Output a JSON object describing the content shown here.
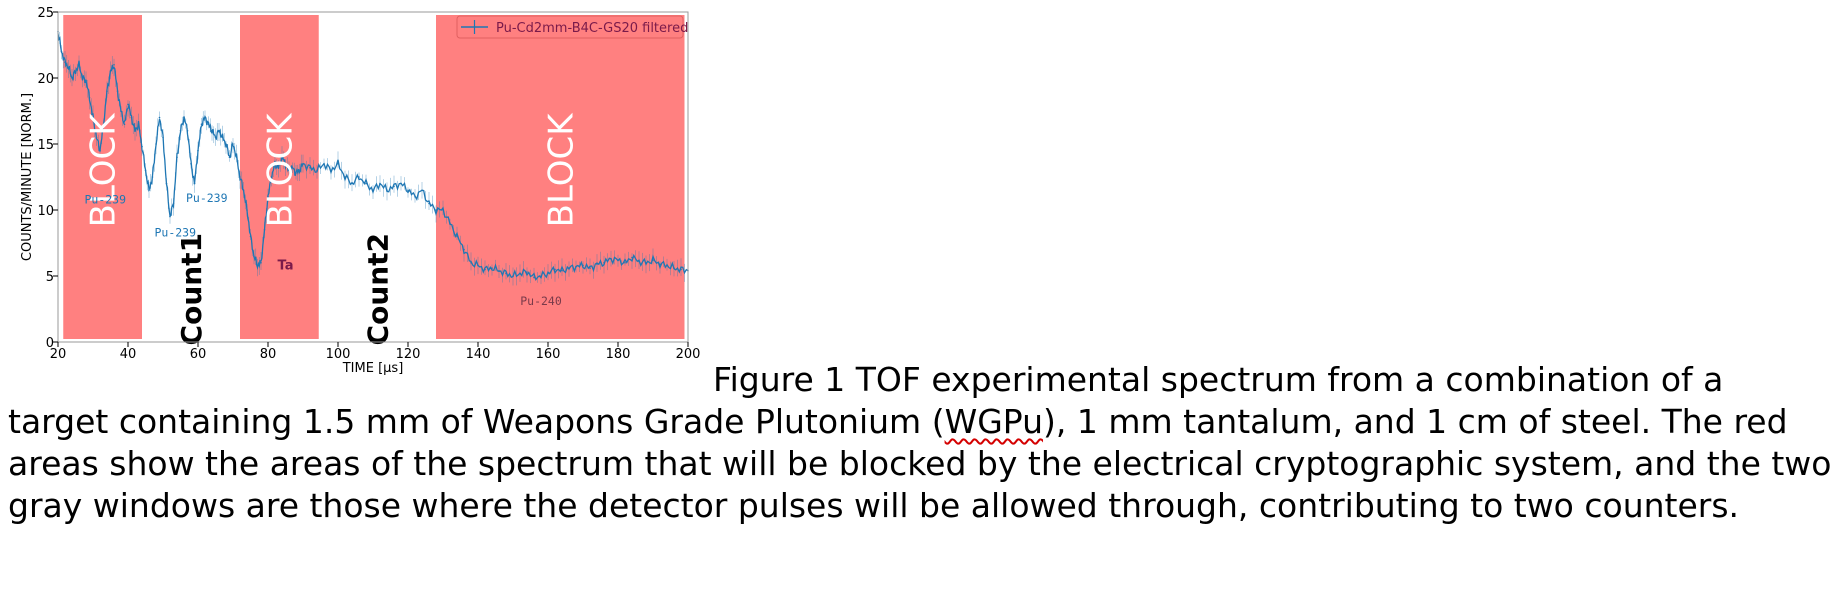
{
  "chart_data": {
    "type": "line",
    "xlabel": "TIME [μs]",
    "ylabel": "COUNTS/MINUTE [NORM.]",
    "xlim": [
      20,
      200
    ],
    "ylim": [
      0,
      25
    ],
    "xticks": [
      20,
      40,
      60,
      80,
      100,
      120,
      140,
      160,
      180,
      200
    ],
    "yticks": [
      0,
      5,
      10,
      15,
      20,
      25
    ],
    "legend": {
      "label": "Pu-Cd2mm-B4C-GS20 filtered",
      "placement": "top-right"
    },
    "grid": false,
    "line_color": "#1f77b4",
    "series": [
      {
        "name": "Pu-Cd2mm-B4C-GS20 filtered",
        "x": [
          20,
          21,
          22,
          23,
          24,
          25,
          26,
          27,
          28,
          29,
          30,
          31,
          32,
          33,
          34,
          35,
          36,
          37,
          38,
          39,
          40,
          41,
          42,
          43,
          44,
          45,
          46,
          47,
          48,
          49,
          50,
          51,
          52,
          53,
          54,
          55,
          56,
          57,
          58,
          59,
          60,
          61,
          62,
          63,
          64,
          65,
          66,
          67,
          68,
          69,
          70,
          71,
          72,
          73,
          74,
          75,
          76,
          77,
          78,
          79,
          80,
          81,
          82,
          83,
          84,
          85,
          86,
          87,
          88,
          89,
          90,
          92,
          94,
          96,
          98,
          100,
          102,
          104,
          106,
          108,
          110,
          112,
          114,
          116,
          118,
          120,
          122,
          124,
          126,
          128,
          130,
          132,
          134,
          136,
          138,
          140,
          142,
          144,
          146,
          148,
          150,
          152,
          154,
          156,
          158,
          160,
          162,
          164,
          166,
          168,
          170,
          172,
          174,
          176,
          178,
          180,
          182,
          184,
          186,
          188,
          190,
          192,
          194,
          196,
          198,
          200
        ],
        "y": [
          23.5,
          22.0,
          21.2,
          20.8,
          20.0,
          20.5,
          21.0,
          20.0,
          19.8,
          18.5,
          17.0,
          15.5,
          14.5,
          16.5,
          19.0,
          20.5,
          21.0,
          19.0,
          17.5,
          16.5,
          18.0,
          17.0,
          16.0,
          16.5,
          14.8,
          13.0,
          11.5,
          12.5,
          15.0,
          17.0,
          15.5,
          12.0,
          9.5,
          10.5,
          14.0,
          16.0,
          17.0,
          16.0,
          13.5,
          12.0,
          14.5,
          16.5,
          17.0,
          16.5,
          16.0,
          15.5,
          16.0,
          15.5,
          15.0,
          14.0,
          15.0,
          14.0,
          12.5,
          11.5,
          10.0,
          8.0,
          6.5,
          5.8,
          6.0,
          8.5,
          11.0,
          12.5,
          13.5,
          13.2,
          14.0,
          13.5,
          13.0,
          13.2,
          12.8,
          13.0,
          13.5,
          13.2,
          13.0,
          13.5,
          13.0,
          13.5,
          12.5,
          12.0,
          12.5,
          12.0,
          11.5,
          12.0,
          11.5,
          11.8,
          12.0,
          11.5,
          11.0,
          11.5,
          10.5,
          10.0,
          10.0,
          9.0,
          8.0,
          7.0,
          6.0,
          5.8,
          5.5,
          5.6,
          5.4,
          5.2,
          5.0,
          5.2,
          5.3,
          4.9,
          5.0,
          5.2,
          5.5,
          5.4,
          5.6,
          5.7,
          5.8,
          5.6,
          5.9,
          6.0,
          6.3,
          6.2,
          6.0,
          6.4,
          6.1,
          6.0,
          6.2,
          5.9,
          5.8,
          5.6,
          5.5,
          5.4
        ]
      }
    ],
    "regions": [
      {
        "kind": "blocked",
        "x_range": [
          21.5,
          44
        ],
        "label": "BLOCK"
      },
      {
        "kind": "open",
        "x_range": [
          44,
          72
        ],
        "label": "Count1"
      },
      {
        "kind": "blocked",
        "x_range": [
          72,
          94.5
        ],
        "label": "BLOCK"
      },
      {
        "kind": "open",
        "x_range": [
          94.5,
          128
        ],
        "label": "Count2"
      },
      {
        "kind": "blocked",
        "x_range": [
          128,
          199
        ],
        "label": "BLOCK"
      }
    ],
    "annotations": [
      {
        "text": "Pu-239",
        "x": 33.5,
        "y": 10.5
      },
      {
        "text": "Pu-239",
        "x": 53.5,
        "y": 8.0
      },
      {
        "text": "Pu-239",
        "x": 62.5,
        "y": 10.6
      },
      {
        "text": "Ta",
        "x": 85.0,
        "y": 5.5
      },
      {
        "text": "Pu-240",
        "x": 158.0,
        "y": 2.8
      }
    ],
    "colors": {
      "blocked": "#ff8080",
      "series": "#1f77b4",
      "annotation": "#1f77b4",
      "ta_label": "#7a1a4a"
    }
  },
  "caption": {
    "line1": "Figure 1 TOF experimental spectrum from a combination of a",
    "line2_before": "target containing 1.5 mm of Weapons Grade Plutonium (",
    "line2_flagged": "WGPu",
    "line2_after": "), 1 mm tantalum, and 1 cm of steel.  The red",
    "line3": "areas show the areas of the spectrum that will be blocked by the electrical cryptographic system, and the two",
    "line4": "gray windows are those where the detector pulses will be allowed through, contributing to two counters."
  }
}
